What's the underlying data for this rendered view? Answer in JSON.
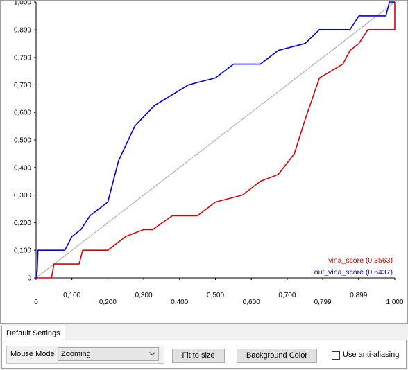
{
  "tabs": {
    "default_settings": "Default Settings"
  },
  "controls": {
    "mouse_mode_label": "Mouse Mode",
    "mouse_mode_value": "Zooming",
    "fit_to_size": "Fit to size",
    "background_color": "Background Color",
    "anti_aliasing_label": "Use anti-aliasing",
    "anti_aliasing_checked": false
  },
  "chart_data": {
    "type": "line",
    "title": "",
    "xlabel": "",
    "ylabel": "",
    "xlim": [
      0,
      1
    ],
    "ylim": [
      0,
      1
    ],
    "grid": false,
    "legend_placement": "bottom-right",
    "x_ticks": [
      "0",
      "0,100",
      "0,200",
      "0,300",
      "0,400",
      "0,500",
      "0,600",
      "0,700",
      "0,799",
      "0,899",
      "1,000"
    ],
    "x_tick_values": [
      0,
      0.1,
      0.2,
      0.3,
      0.4,
      0.5,
      0.6,
      0.7,
      0.799,
      0.899,
      1.0
    ],
    "y_ticks": [
      "0",
      "0,100",
      "0,200",
      "0,300",
      "0,400",
      "0,500",
      "0,600",
      "0,700",
      "0,799",
      "0,899",
      "1,000"
    ],
    "y_tick_values": [
      0,
      0.1,
      0.2,
      0.3,
      0.4,
      0.5,
      0.6,
      0.7,
      0.799,
      0.899,
      1.0
    ],
    "diagonal": {
      "color": "#b4b4b4"
    },
    "series": [
      {
        "name": "vina_score (0,3563)",
        "color": "#dd0000",
        "points": [
          [
            0,
            0
          ],
          [
            0.043,
            0
          ],
          [
            0.05,
            0.05
          ],
          [
            0.12,
            0.05
          ],
          [
            0.13,
            0.1
          ],
          [
            0.2,
            0.1
          ],
          [
            0.25,
            0.15
          ],
          [
            0.3,
            0.175
          ],
          [
            0.325,
            0.175
          ],
          [
            0.38,
            0.225
          ],
          [
            0.45,
            0.225
          ],
          [
            0.5,
            0.275
          ],
          [
            0.575,
            0.3
          ],
          [
            0.625,
            0.35
          ],
          [
            0.675,
            0.375
          ],
          [
            0.72,
            0.45
          ],
          [
            0.75,
            0.575
          ],
          [
            0.79,
            0.725
          ],
          [
            0.855,
            0.775
          ],
          [
            0.875,
            0.825
          ],
          [
            0.9,
            0.85
          ],
          [
            0.925,
            0.9
          ],
          [
            1.0,
            0.9
          ],
          [
            1.0,
            1.0
          ]
        ]
      },
      {
        "name": "out_vina_score (0,6437)",
        "color": "#0000dd",
        "points": [
          [
            0,
            0
          ],
          [
            0.003,
            0.025
          ],
          [
            0.005,
            0.1
          ],
          [
            0.08,
            0.1
          ],
          [
            0.1,
            0.15
          ],
          [
            0.125,
            0.175
          ],
          [
            0.15,
            0.225
          ],
          [
            0.2,
            0.275
          ],
          [
            0.23,
            0.425
          ],
          [
            0.275,
            0.55
          ],
          [
            0.33,
            0.625
          ],
          [
            0.425,
            0.7
          ],
          [
            0.5,
            0.725
          ],
          [
            0.55,
            0.775
          ],
          [
            0.625,
            0.775
          ],
          [
            0.675,
            0.825
          ],
          [
            0.75,
            0.85
          ],
          [
            0.79,
            0.9
          ],
          [
            0.875,
            0.9
          ],
          [
            0.9,
            0.95
          ],
          [
            0.975,
            0.95
          ],
          [
            0.98,
            0.975
          ],
          [
            0.985,
            1.0
          ],
          [
            1.0,
            1.0
          ]
        ]
      }
    ]
  }
}
